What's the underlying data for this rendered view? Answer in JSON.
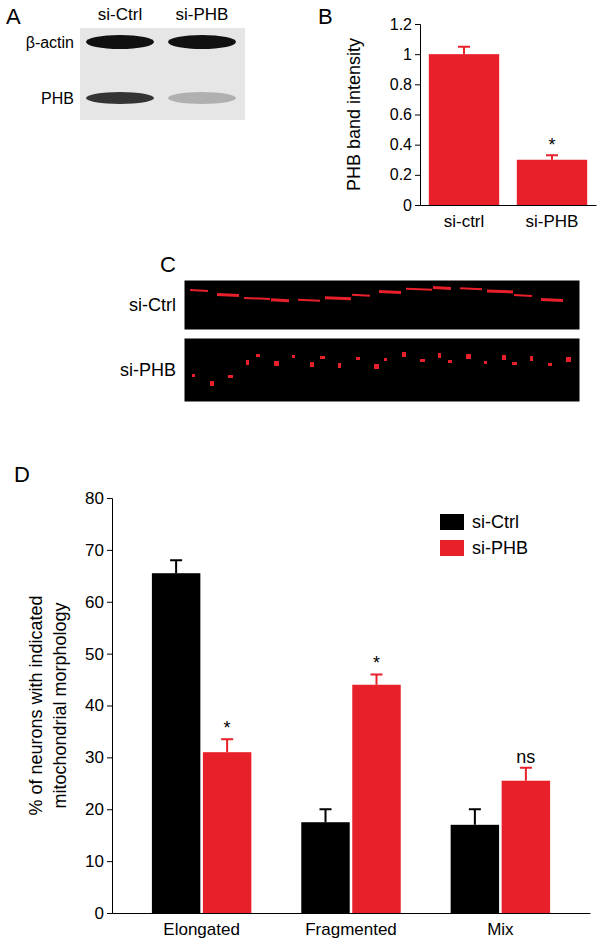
{
  "panels": [
    "A",
    "B",
    "C",
    "D"
  ],
  "blot": {
    "lanes": [
      "si-Ctrl",
      "si-PHB"
    ],
    "bands": [
      "β-actin",
      "PHB"
    ]
  },
  "micrograph": {
    "rows": [
      "si-Ctrl",
      "si-PHB"
    ]
  },
  "chart_data": [
    {
      "type": "bar",
      "ylabel": "PHB band intensity",
      "categories": [
        "si-ctrl",
        "si-PHB"
      ],
      "values": [
        1,
        0.3
      ],
      "errors": [
        0.05,
        0.03
      ],
      "color": "#e8202a",
      "ylim": [
        0,
        1.2
      ],
      "yticks": [
        0,
        0.2,
        0.4,
        0.6,
        0.8,
        1,
        1.2
      ],
      "annotations": [
        {
          "category": "si-PHB",
          "text": "*"
        }
      ]
    },
    {
      "type": "bar",
      "ylabel": "% of neurons with indicated\nmitochondrial morphology",
      "categories": [
        "Elongated",
        "Fragmented",
        "Mix"
      ],
      "series": [
        {
          "name": "si-Ctrl",
          "color": "#000000",
          "values": [
            65.5,
            17.5,
            17
          ],
          "errors": [
            2.5,
            2.5,
            3
          ]
        },
        {
          "name": "si-PHB",
          "color": "#e8202a",
          "values": [
            31,
            44,
            25.5
          ],
          "errors": [
            2.5,
            2,
            2.5
          ]
        }
      ],
      "ylim": [
        0,
        80
      ],
      "yticks": [
        0,
        10,
        20,
        30,
        40,
        50,
        60,
        70,
        80
      ],
      "legend": "top-right",
      "annotations": [
        {
          "series": "si-PHB",
          "category": "Elongated",
          "text": "*"
        },
        {
          "series": "si-PHB",
          "category": "Fragmented",
          "text": "*"
        },
        {
          "series": "si-PHB",
          "category": "Mix",
          "text": "ns"
        }
      ]
    }
  ]
}
